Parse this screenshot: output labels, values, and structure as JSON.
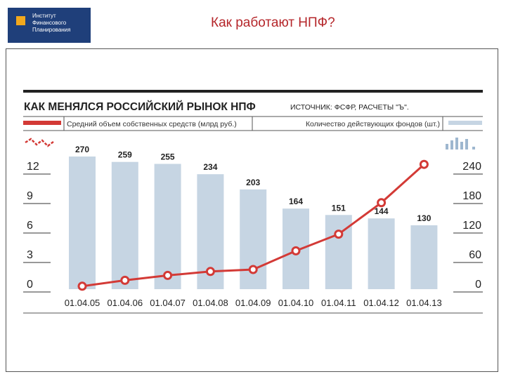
{
  "header": {
    "logo_lines": [
      "Институт",
      "Финансового",
      "Планирования"
    ],
    "slide_title": "Как работают НПФ?"
  },
  "colors": {
    "bar": "#c6d5e3",
    "line": "#d33a36",
    "logo_bg": "#1f3f7a",
    "logo_accent": "#f2a81d",
    "title": "#b5262a"
  },
  "chart_data": {
    "type": "bar",
    "title": "КАК МЕНЯЛСЯ РОССИЙСКИЙ РЫНОК НПФ",
    "source": "ИСТОЧНИК: ФСФР, РАСЧЕТЫ \"Ъ\".",
    "categories": [
      "01.04.05",
      "01.04.06",
      "01.04.07",
      "01.04.08",
      "01.04.09",
      "01.04.10",
      "01.04.11",
      "01.04.12",
      "01.04.13"
    ],
    "series": [
      {
        "name": "Количество действующих фондов (шт.)",
        "type": "bar",
        "axis": "right",
        "values": [
          270,
          259,
          255,
          234,
          203,
          164,
          151,
          144,
          130
        ]
      },
      {
        "name": "Средний объем собственных средств (млрд руб.)",
        "type": "line",
        "axis": "left",
        "values": [
          0.3,
          0.9,
          1.4,
          1.8,
          2.0,
          3.9,
          5.6,
          8.8,
          12.7
        ]
      }
    ],
    "left_axis": {
      "ticks": [
        "12",
        "9",
        "6",
        "3",
        "0"
      ],
      "ylim": [
        0,
        12
      ]
    },
    "right_axis": {
      "ticks": [
        "240",
        "180",
        "120",
        "60",
        "0"
      ],
      "ylim": [
        0,
        240
      ]
    },
    "grid": false,
    "legend_position": "top"
  }
}
